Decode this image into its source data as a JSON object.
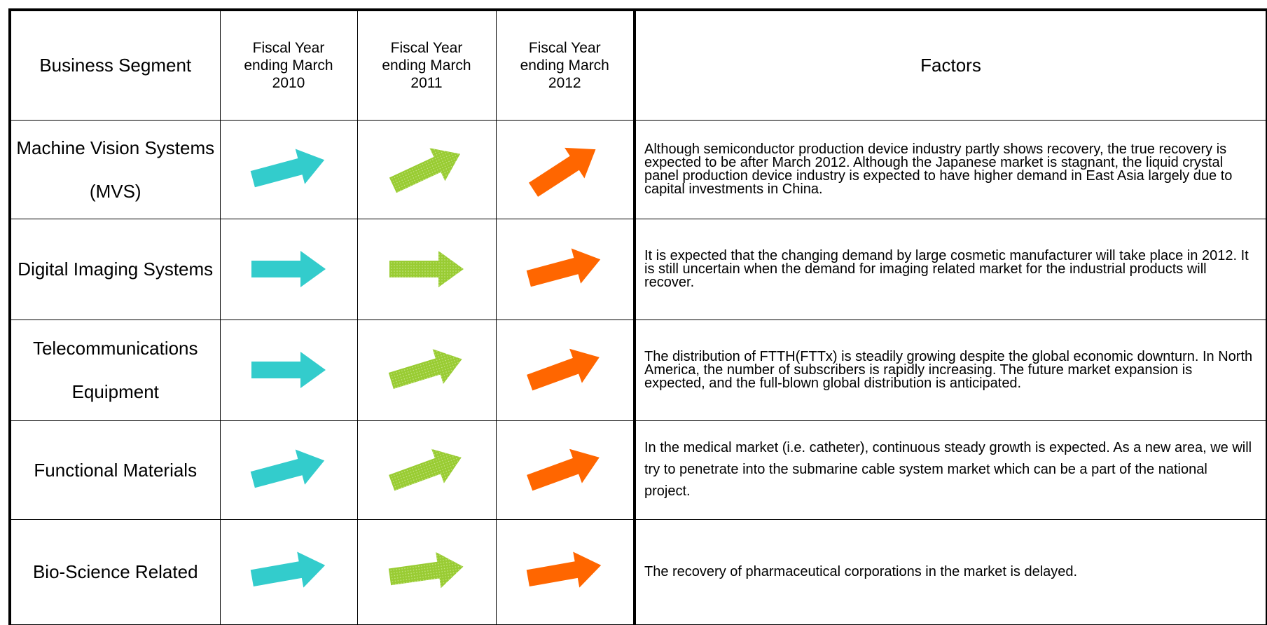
{
  "header": {
    "columns": [
      "Business Segment",
      "Fiscal Year ending March 2010",
      "Fiscal Year ending March 2011",
      "Fiscal Year ending March 2012",
      "Factors"
    ]
  },
  "rows": [
    {
      "segment": "Machine Vision Systems (MVS)",
      "factors": "Although semiconductor production device industry partly shows recovery, the true recovery is expected to be after March 2012. Although the Japanese market is stagnant, the liquid crystal panel production device industry is expected to have higher demand in East Asia largely due to capital investments in China."
    },
    {
      "segment": "Digital Imaging Systems",
      "factors": "It is expected that the changing demand by large cosmetic manufacturer will take place in 2012. It is still uncertain when the demand for imaging related market for the industrial products will recover."
    },
    {
      "segment": "Telecommunications Equipment",
      "factors": "The distribution of FTTH(FTTx) is steadily growing despite the global economic downturn. In North America, the number of subscribers is rapidly increasing. The future market expansion is expected, and the full-blown global distribution is anticipated."
    },
    {
      "segment": "Functional Materials",
      "factors": "In the medical market (i.e. catheter), continuous steady growth is expected. As a new area, we will try to penetrate into the submarine cable system market which can be a part of the national project."
    },
    {
      "segment": "Bio-Science Related",
      "factors": "The recovery of pharmaceutical corporations in the market is delayed."
    }
  ]
}
